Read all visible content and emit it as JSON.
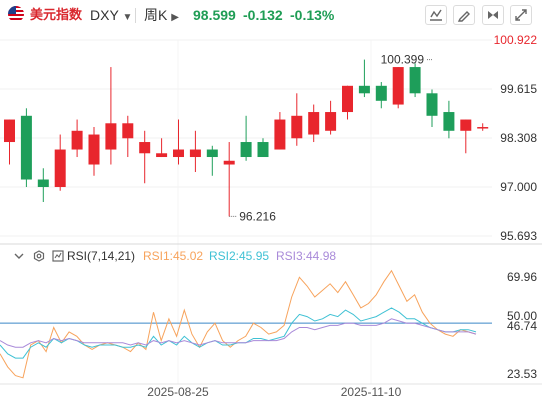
{
  "header": {
    "name": "美元指数",
    "code": "DXY",
    "period": "周K",
    "price": "98.599",
    "change": "-0.132",
    "change_pct": "-0.13%"
  },
  "rsi_legend": {
    "label": "RSI(7,14,21)",
    "rsi1": "RSI1:45.02",
    "rsi2": "RSI2:45.95",
    "rsi3": "RSI3:44.98"
  },
  "colors": {
    "up": "#e8262d",
    "down": "#1e9e5a",
    "rsi1": "#f7a35c",
    "rsi2": "#3fc1d4",
    "rsi3": "#a98ad9",
    "ref": "#3a86c8",
    "axis_text": "#333333",
    "axis_text_top": "#e8262d"
  },
  "chart_data": [
    {
      "type": "candlestick",
      "title": "",
      "ylim": [
        95.693,
        100.922
      ],
      "y_ticks": [
        "100.922",
        "99.615",
        "98.308",
        "97.000",
        "95.693"
      ],
      "x_ticks": [
        "2025-08-25",
        "2025-11-10"
      ],
      "annotations": [
        {
          "text": "100.399",
          "value": 100.399,
          "index": 25
        },
        {
          "text": "96.216",
          "value": 96.216,
          "index": 13
        }
      ],
      "candles": [
        {
          "o": 98.2,
          "h": 98.8,
          "l": 97.6,
          "c": 98.8
        },
        {
          "o": 98.9,
          "h": 99.1,
          "l": 97.0,
          "c": 97.2
        },
        {
          "o": 97.2,
          "h": 97.5,
          "l": 96.6,
          "c": 97.0
        },
        {
          "o": 97.0,
          "h": 98.4,
          "l": 96.9,
          "c": 98.0
        },
        {
          "o": 98.0,
          "h": 98.8,
          "l": 97.8,
          "c": 98.5
        },
        {
          "o": 97.6,
          "h": 98.6,
          "l": 97.3,
          "c": 98.4
        },
        {
          "o": 98.0,
          "h": 100.2,
          "l": 97.6,
          "c": 98.7
        },
        {
          "o": 98.3,
          "h": 98.9,
          "l": 97.8,
          "c": 98.7
        },
        {
          "o": 97.9,
          "h": 98.5,
          "l": 97.1,
          "c": 98.2
        },
        {
          "o": 97.8,
          "h": 98.3,
          "l": 97.8,
          "c": 97.9
        },
        {
          "o": 97.8,
          "h": 98.8,
          "l": 97.6,
          "c": 98.0
        },
        {
          "o": 97.8,
          "h": 98.5,
          "l": 97.4,
          "c": 98.0
        },
        {
          "o": 98.0,
          "h": 98.1,
          "l": 97.3,
          "c": 97.8
        },
        {
          "o": 97.6,
          "h": 98.2,
          "l": 96.216,
          "c": 97.7
        },
        {
          "o": 98.2,
          "h": 98.9,
          "l": 97.7,
          "c": 97.8
        },
        {
          "o": 98.2,
          "h": 98.3,
          "l": 97.8,
          "c": 97.8
        },
        {
          "o": 98.0,
          "h": 99.0,
          "l": 98.0,
          "c": 98.8
        },
        {
          "o": 98.3,
          "h": 99.5,
          "l": 98.1,
          "c": 98.9
        },
        {
          "o": 98.4,
          "h": 99.2,
          "l": 98.2,
          "c": 99.0
        },
        {
          "o": 98.5,
          "h": 99.3,
          "l": 98.4,
          "c": 99.0
        },
        {
          "o": 99.0,
          "h": 99.7,
          "l": 98.8,
          "c": 99.7
        },
        {
          "o": 99.7,
          "h": 100.399,
          "l": 99.4,
          "c": 99.5
        },
        {
          "o": 99.7,
          "h": 99.8,
          "l": 99.1,
          "c": 99.3
        },
        {
          "o": 99.2,
          "h": 100.2,
          "l": 99.1,
          "c": 100.2
        },
        {
          "o": 100.2,
          "h": 100.3,
          "l": 99.4,
          "c": 99.5
        },
        {
          "o": 99.5,
          "h": 99.6,
          "l": 98.6,
          "c": 98.9
        },
        {
          "o": 99.0,
          "h": 99.3,
          "l": 98.3,
          "c": 98.5
        },
        {
          "o": 98.5,
          "h": 98.8,
          "l": 97.9,
          "c": 98.8
        },
        {
          "o": 98.6,
          "h": 98.7,
          "l": 98.5,
          "c": 98.6
        }
      ]
    },
    {
      "type": "line",
      "title": "RSI(7,14,21)",
      "ylim": [
        23.53,
        78
      ],
      "y_ticks": [
        "69.96",
        "50.00",
        "46.74",
        "23.53"
      ],
      "reference_line": 50.0,
      "series": [
        {
          "name": "RSI1",
          "values": [
            36,
            30,
            26,
            25,
            40,
            42,
            37,
            48,
            41,
            46,
            44,
            40,
            38,
            40,
            41,
            40,
            39,
            37,
            41,
            38,
            55,
            42,
            52,
            44,
            56,
            45,
            39,
            46,
            50,
            42,
            39,
            42,
            44,
            50,
            48,
            45,
            46,
            49,
            62,
            71,
            67,
            62,
            65,
            68,
            64,
            69,
            63,
            57,
            59,
            63,
            69,
            74,
            67,
            60,
            63,
            55,
            50,
            47,
            45,
            44,
            47,
            46,
            45
          ]
        },
        {
          "name": "RSI2",
          "values": [
            40,
            36,
            34,
            34,
            39,
            41,
            39,
            43,
            41,
            43,
            42,
            40,
            39,
            40,
            40,
            40,
            39,
            39,
            40,
            39,
            44,
            40,
            42,
            40,
            44,
            41,
            39,
            41,
            42,
            40,
            40,
            41,
            41,
            43,
            43,
            42,
            43,
            44,
            50,
            54,
            53,
            51,
            52,
            54,
            53,
            56,
            54,
            51,
            52,
            53,
            55,
            57,
            55,
            52,
            52,
            50,
            48,
            47,
            46,
            46,
            47,
            47,
            46
          ]
        },
        {
          "name": "RSI3",
          "values": [
            42,
            40,
            39,
            39,
            41,
            42,
            41,
            43,
            42,
            43,
            42,
            41,
            41,
            41,
            41,
            41,
            41,
            40,
            41,
            40,
            42,
            41,
            42,
            41,
            42,
            41,
            40,
            41,
            42,
            41,
            41,
            41,
            41,
            42,
            42,
            42,
            42,
            43,
            46,
            48,
            48,
            47,
            48,
            49,
            49,
            50,
            50,
            49,
            49,
            49,
            50,
            52,
            51,
            50,
            50,
            49,
            48,
            47,
            46,
            46,
            46,
            46,
            45
          ]
        }
      ]
    }
  ]
}
